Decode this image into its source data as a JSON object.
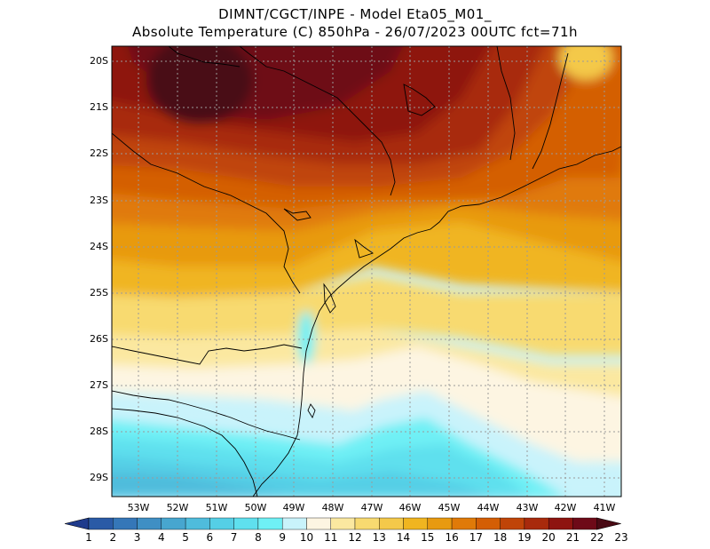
{
  "header": {
    "line1": "DIMNT/CGCT/INPE -  Model Eta05_M01_",
    "line2": "Absolute Temperature (C) 850hPa -  26/07/2023 00UTC fct=71h"
  },
  "map": {
    "lat_labels": [
      "20S",
      "21S",
      "22S",
      "23S",
      "24S",
      "25S",
      "26S",
      "27S",
      "28S",
      "29S"
    ],
    "lon_labels": [
      "53W",
      "52W",
      "51W",
      "50W",
      "49W",
      "48W",
      "47W",
      "46W",
      "45W",
      "44W",
      "43W",
      "42W",
      "41W"
    ]
  },
  "colorbar": {
    "labels": [
      "1",
      "2",
      "3",
      "4",
      "5",
      "6",
      "7",
      "8",
      "9",
      "10",
      "11",
      "12",
      "13",
      "14",
      "15",
      "16",
      "17",
      "18",
      "19",
      "20",
      "21",
      "22",
      "23"
    ],
    "colors": [
      "#1f3b8c",
      "#2a5aa6",
      "#3577b8",
      "#3f8fc4",
      "#47a6cf",
      "#4fbcdc",
      "#55cfe6",
      "#5fe0ee",
      "#6ff0f5",
      "#c9f3fb",
      "#fdf5e2",
      "#fbe8a0",
      "#f8da70",
      "#f4c94a",
      "#f0b520",
      "#e89a10",
      "#e07a08",
      "#d45e05",
      "#c04408",
      "#a82a0c",
      "#8e1410",
      "#6e0a18",
      "#4a0a14"
    ]
  }
}
